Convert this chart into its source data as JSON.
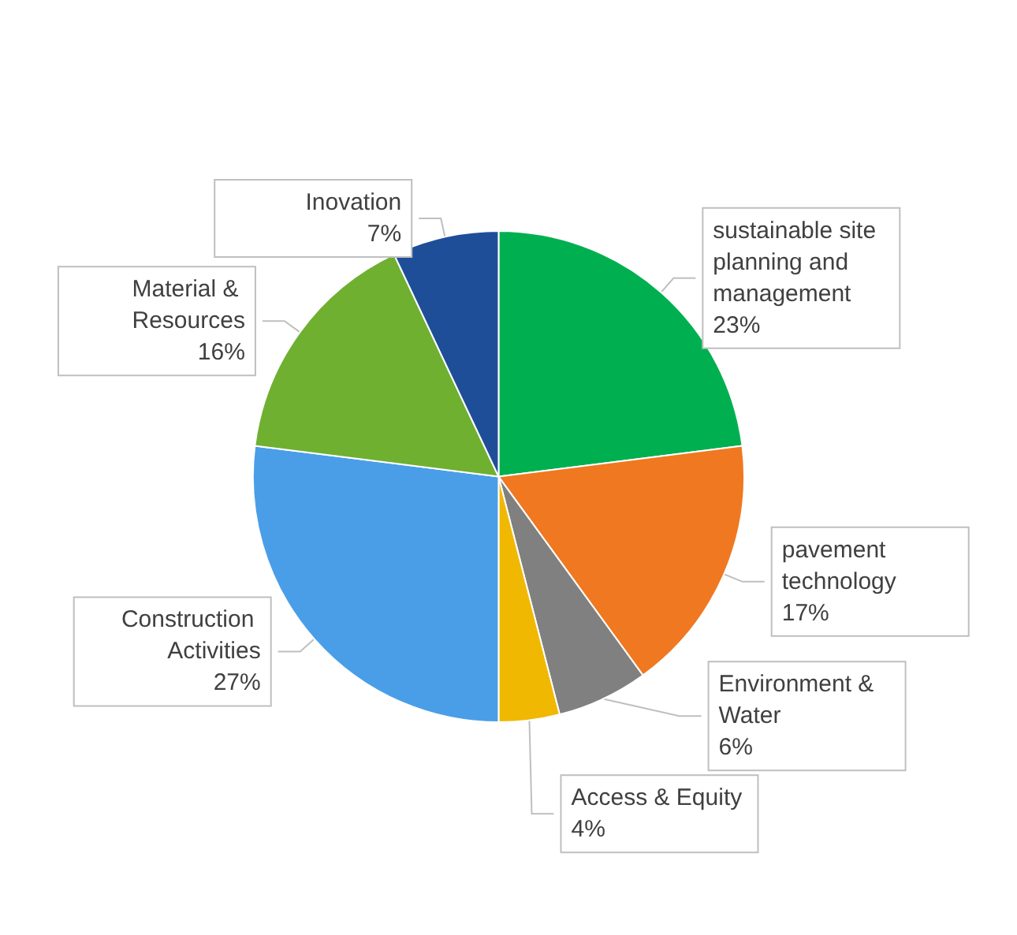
{
  "chart_data": {
    "type": "pie",
    "categories": [
      "sustainable site planning and management",
      "pavement technology",
      "Environment & Water",
      "Access & Equity",
      "Construction Activities",
      "Material & Resources",
      "Inovation"
    ],
    "values": [
      23,
      17,
      6,
      4,
      27,
      16,
      7
    ],
    "colors": [
      "#00b050",
      "#f07820",
      "#808080",
      "#f0b800",
      "#4a9ee8",
      "#6fb030",
      "#1f4e99"
    ],
    "value_labels": [
      "23%",
      "17%",
      "6%",
      "4%",
      "27%",
      "16%",
      "7%"
    ],
    "legend": false
  }
}
